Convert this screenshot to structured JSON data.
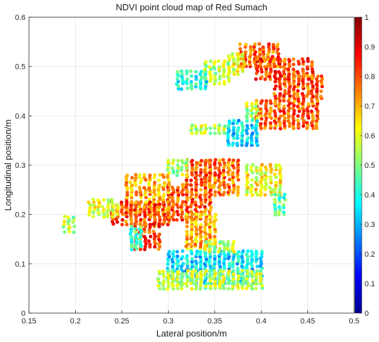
{
  "chart_data": {
    "type": "scatter",
    "title": "NDVI point cloud map of Red Sumach",
    "xlabel": "Lateral position/m",
    "ylabel": "Longitudinal position/m",
    "xlim": [
      0.15,
      0.5
    ],
    "ylim": [
      0,
      0.6
    ],
    "xticks": [
      "0.15",
      "0.2",
      "0.25",
      "0.3",
      "0.35",
      "0.4",
      "0.45",
      "0.5"
    ],
    "yticks": [
      "0",
      "0.1",
      "0.2",
      "0.3",
      "0.4",
      "0.5",
      "0.6"
    ],
    "grid": true,
    "colorbar": {
      "colormap": "jet",
      "range": [
        0,
        1
      ],
      "ticks": [
        "0",
        "0.1",
        "0.2",
        "0.3",
        "0.4",
        "0.5",
        "0.6",
        "0.7",
        "0.8",
        "0.9",
        "1"
      ]
    },
    "regions": [
      {
        "x": [
          0.378,
          0.418
        ],
        "y": [
          0.5,
          0.545
        ],
        "ndvi": 0.78
      },
      {
        "x": [
          0.395,
          0.455
        ],
        "y": [
          0.475,
          0.515
        ],
        "ndvi": 0.82
      },
      {
        "x": [
          0.415,
          0.465
        ],
        "y": [
          0.435,
          0.48
        ],
        "ndvi": 0.8
      },
      {
        "x": [
          0.365,
          0.38
        ],
        "y": [
          0.485,
          0.525
        ],
        "ndvi": 0.6
      },
      {
        "x": [
          0.34,
          0.365
        ],
        "y": [
          0.465,
          0.51
        ],
        "ndvi": 0.55
      },
      {
        "x": [
          0.31,
          0.34
        ],
        "y": [
          0.455,
          0.49
        ],
        "ndvi": 0.4
      },
      {
        "x": [
          0.395,
          0.46
        ],
        "y": [
          0.375,
          0.43
        ],
        "ndvi": 0.78
      },
      {
        "x": [
          0.385,
          0.398
        ],
        "y": [
          0.395,
          0.425
        ],
        "ndvi": 0.55
      },
      {
        "x": [
          0.365,
          0.395
        ],
        "y": [
          0.34,
          0.39
        ],
        "ndvi": 0.35
      },
      {
        "x": [
          0.325,
          0.36
        ],
        "y": [
          0.365,
          0.38
        ],
        "ndvi": 0.55
      },
      {
        "x": [
          0.34,
          0.375
        ],
        "y": [
          0.24,
          0.31
        ],
        "ndvi": 0.77
      },
      {
        "x": [
          0.32,
          0.345
        ],
        "y": [
          0.26,
          0.31
        ],
        "ndvi": 0.8
      },
      {
        "x": [
          0.3,
          0.32
        ],
        "y": [
          0.28,
          0.31
        ],
        "ndvi": 0.55
      },
      {
        "x": [
          0.3,
          0.345
        ],
        "y": [
          0.19,
          0.26
        ],
        "ndvi": 0.8
      },
      {
        "x": [
          0.32,
          0.35
        ],
        "y": [
          0.13,
          0.2
        ],
        "ndvi": 0.7
      },
      {
        "x": [
          0.255,
          0.3
        ],
        "y": [
          0.2,
          0.28
        ],
        "ndvi": 0.7
      },
      {
        "x": [
          0.24,
          0.3
        ],
        "y": [
          0.18,
          0.225
        ],
        "ndvi": 0.8
      },
      {
        "x": [
          0.215,
          0.245
        ],
        "y": [
          0.195,
          0.23
        ],
        "ndvi": 0.6
      },
      {
        "x": [
          0.265,
          0.29
        ],
        "y": [
          0.13,
          0.18
        ],
        "ndvi": 0.82
      },
      {
        "x": [
          0.26,
          0.27
        ],
        "y": [
          0.13,
          0.175
        ],
        "ndvi": 0.45
      },
      {
        "x": [
          0.188,
          0.198
        ],
        "y": [
          0.165,
          0.195
        ],
        "ndvi": 0.55
      },
      {
        "x": [
          0.385,
          0.42
        ],
        "y": [
          0.24,
          0.3
        ],
        "ndvi": 0.62
      },
      {
        "x": [
          0.415,
          0.425
        ],
        "y": [
          0.2,
          0.24
        ],
        "ndvi": 0.45
      },
      {
        "x": [
          0.3,
          0.4
        ],
        "y": [
          0.06,
          0.125
        ],
        "ndvi": 0.35
      },
      {
        "x": [
          0.29,
          0.4
        ],
        "y": [
          0.05,
          0.085
        ],
        "ndvi": 0.55
      },
      {
        "x": [
          0.34,
          0.37
        ],
        "y": [
          0.125,
          0.145
        ],
        "ndvi": 0.55
      }
    ]
  }
}
